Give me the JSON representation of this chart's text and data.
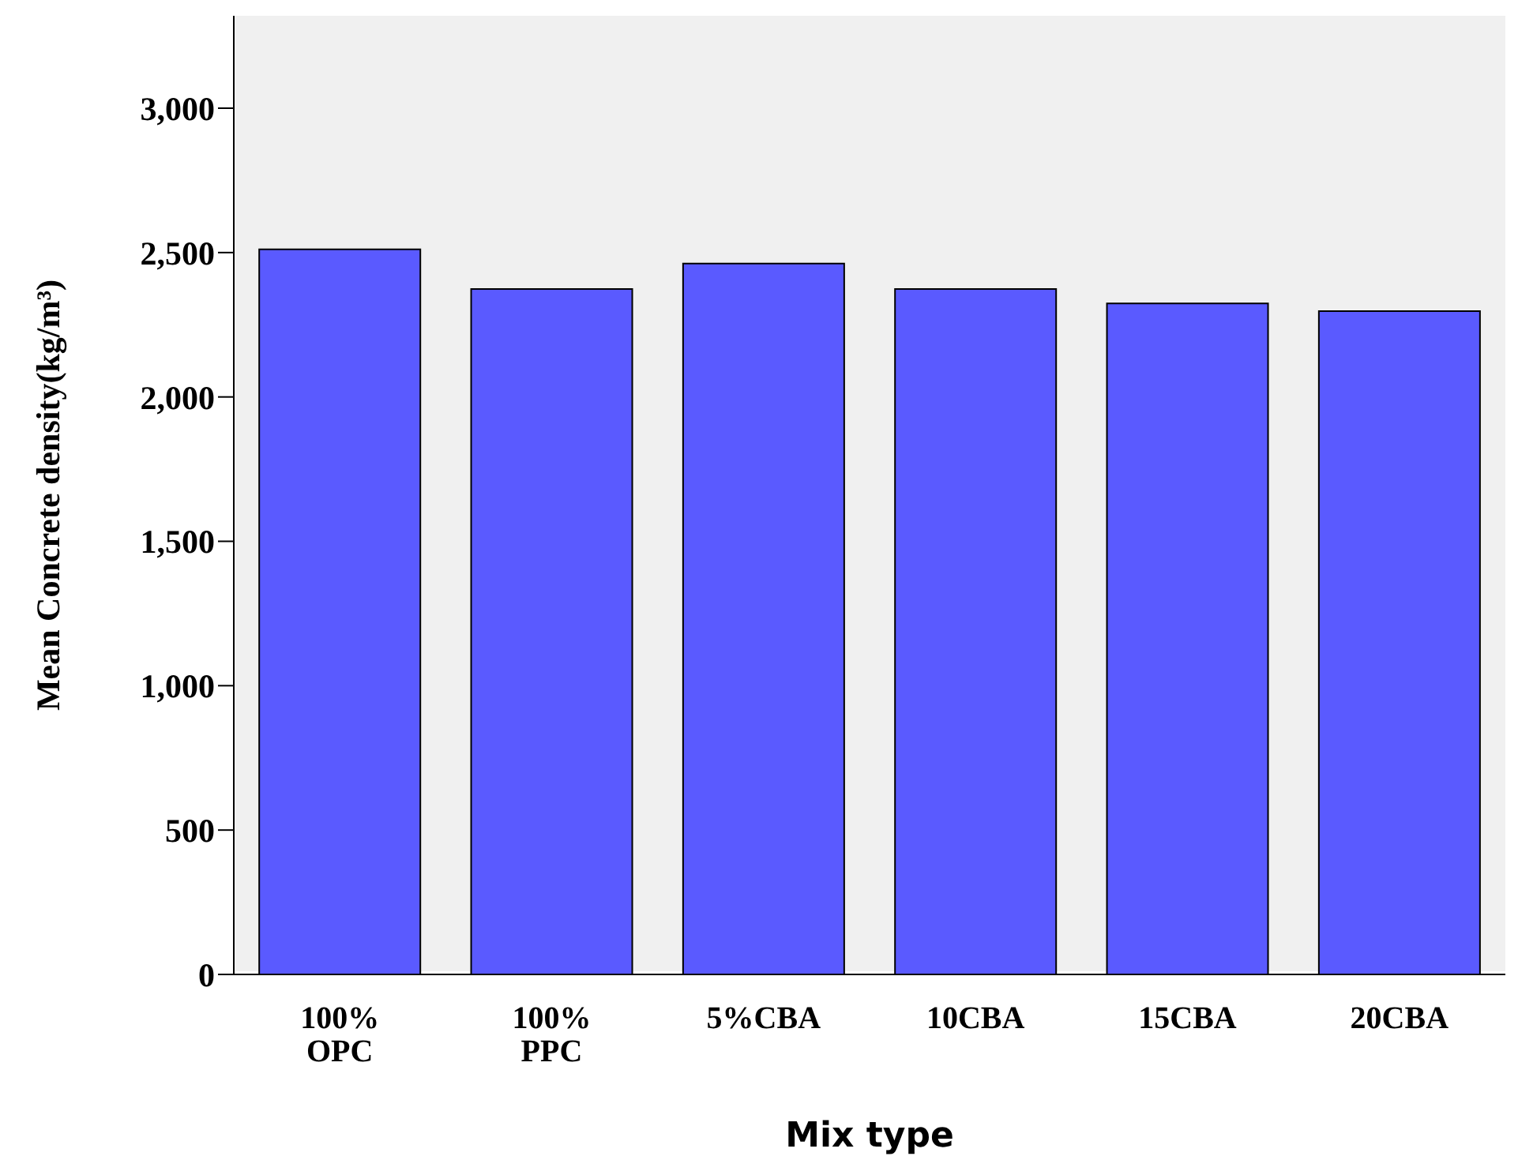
{
  "chart_data": {
    "type": "bar",
    "xlabel": "Mix type",
    "ylabel": "Mean Concrete density(kg/m³)",
    "categories": [
      "100% OPC",
      "100% PPC",
      "5%CBA",
      "10CBA",
      "15CBA",
      "20CBA"
    ],
    "values": [
      2511,
      2374,
      2462,
      2374,
      2324,
      2297
    ],
    "color": "#5a5aff",
    "ylim": [
      0,
      3320
    ],
    "yticks": [
      {
        "value": 0,
        "label": "0"
      },
      {
        "value": 500,
        "label": "500"
      },
      {
        "value": 1000,
        "label": "1,000"
      },
      {
        "value": 1500,
        "label": "1,500"
      },
      {
        "value": 2000,
        "label": "2,000"
      },
      {
        "value": 2500,
        "label": "2,500"
      },
      {
        "value": 3000,
        "label": "3,000"
      }
    ],
    "grid": false,
    "legend": false
  }
}
